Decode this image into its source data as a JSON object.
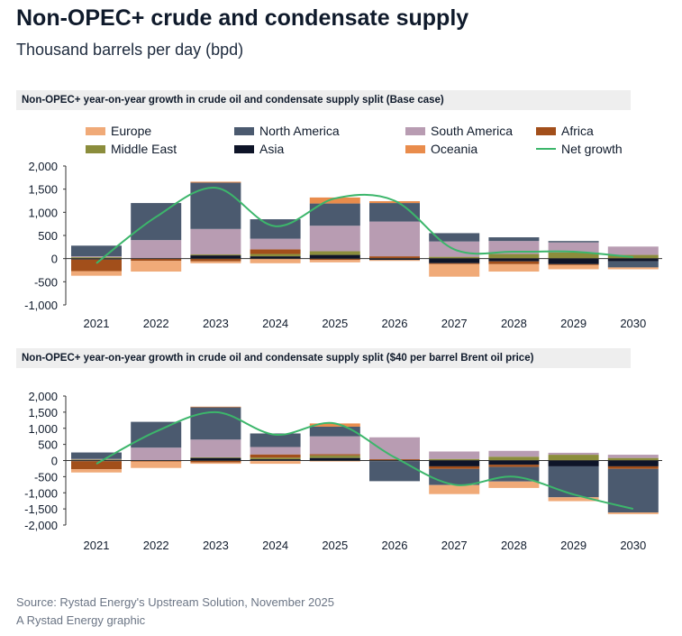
{
  "title": "Non-OPEC+ crude and condensate supply",
  "subtitle": "Thousand barrels per day (bpd)",
  "source": "Source: Rystad Energy's Upstream Solution, November 2025",
  "credit": "A Rystad Energy graphic",
  "legend": [
    {
      "name": "Europe",
      "color": "#f0aa78"
    },
    {
      "name": "North America",
      "color": "#4b5a6f"
    },
    {
      "name": "South America",
      "color": "#b89cb2"
    },
    {
      "name": "Africa",
      "color": "#a24f1b"
    },
    {
      "name": "Middle East",
      "color": "#8b8d3c"
    },
    {
      "name": "Asia",
      "color": "#0e1428"
    },
    {
      "name": "Oceania",
      "color": "#e98c4c"
    },
    {
      "name": "Net growth",
      "color": "#3cb66b",
      "type": "line"
    }
  ],
  "chart_data": [
    {
      "type": "bar",
      "stacked": true,
      "title": "Non-OPEC+ year-on-year growth in crude oil and condensate supply split (Base case)",
      "categories": [
        "2021",
        "2022",
        "2023",
        "2024",
        "2025",
        "2026",
        "2027",
        "2028",
        "2029",
        "2030"
      ],
      "ylim": [
        -1000,
        2000
      ],
      "yticks": [
        "2,000",
        "1,500",
        "1,000",
        "500",
        "0",
        "-500",
        "-1,000"
      ],
      "ytick_values": [
        2000,
        1500,
        1000,
        500,
        0,
        -500,
        -1000
      ],
      "series": [
        {
          "name": "Europe",
          "values": [
            -100,
            -230,
            -40,
            -100,
            -50,
            -20,
            -270,
            -160,
            -90,
            -40
          ]
        },
        {
          "name": "North America",
          "values": [
            230,
            800,
            1000,
            420,
            480,
            400,
            180,
            80,
            30,
            -130
          ]
        },
        {
          "name": "South America",
          "values": [
            20,
            400,
            550,
            230,
            550,
            750,
            330,
            280,
            220,
            180
          ]
        },
        {
          "name": "Africa",
          "values": [
            -250,
            -50,
            -60,
            100,
            -30,
            50,
            -20,
            -60,
            -20,
            0
          ]
        },
        {
          "name": "Middle East",
          "values": [
            30,
            0,
            20,
            50,
            80,
            0,
            40,
            100,
            130,
            80
          ]
        },
        {
          "name": "Asia",
          "values": [
            -20,
            0,
            70,
            50,
            80,
            -30,
            -100,
            -60,
            -120,
            -60
          ]
        },
        {
          "name": "Oceania",
          "values": [
            0,
            0,
            20,
            0,
            130,
            40,
            0,
            0,
            0,
            0
          ]
        }
      ],
      "net_growth": [
        -100,
        900,
        1530,
        700,
        1300,
        1250,
        200,
        150,
        150,
        30
      ]
    },
    {
      "type": "bar",
      "stacked": true,
      "title": "Non-OPEC+ year-on-year growth in crude oil and condensate supply split ($40 per barrel Brent oil price)",
      "categories": [
        "2021",
        "2022",
        "2023",
        "2024",
        "2025",
        "2026",
        "2027",
        "2028",
        "2029",
        "2030"
      ],
      "ylim": [
        -2000,
        2000
      ],
      "yticks": [
        "2,000",
        "1,500",
        "1,000",
        "500",
        "0",
        "-500",
        "-1,000",
        "-1,500",
        "-2,000"
      ],
      "ytick_values": [
        2000,
        1500,
        1000,
        500,
        0,
        -500,
        -1000,
        -1500,
        -2000
      ],
      "series": [
        {
          "name": "Europe",
          "values": [
            -100,
            -200,
            -40,
            -80,
            -30,
            0,
            -280,
            -200,
            -120,
            -50
          ]
        },
        {
          "name": "North America",
          "values": [
            200,
            800,
            1000,
            420,
            300,
            -620,
            -500,
            -450,
            -960,
            -1350
          ]
        },
        {
          "name": "South America",
          "values": [
            20,
            400,
            550,
            230,
            550,
            680,
            230,
            180,
            60,
            100
          ]
        },
        {
          "name": "Africa",
          "values": [
            -250,
            -30,
            -60,
            100,
            40,
            40,
            -80,
            -70,
            0,
            -80
          ]
        },
        {
          "name": "Middle East",
          "values": [
            30,
            0,
            20,
            50,
            80,
            0,
            50,
            120,
            180,
            80
          ]
        },
        {
          "name": "Asia",
          "values": [
            -20,
            0,
            80,
            40,
            80,
            -20,
            -180,
            -130,
            -180,
            -180
          ]
        },
        {
          "name": "Oceania",
          "values": [
            0,
            0,
            20,
            -20,
            100,
            0,
            0,
            0,
            0,
            0
          ]
        }
      ],
      "net_growth": [
        -100,
        900,
        1500,
        800,
        1150,
        100,
        -750,
        -500,
        -1050,
        -1500
      ]
    }
  ]
}
